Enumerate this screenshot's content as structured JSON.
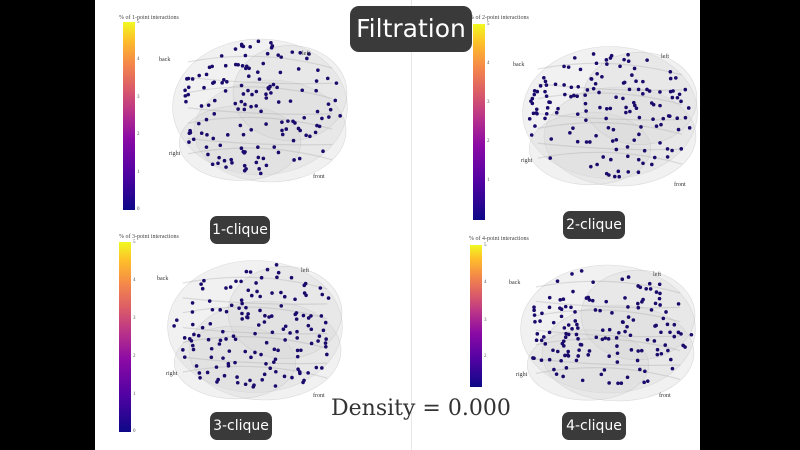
{
  "title": "Filtration",
  "density": "Density = 0.000",
  "colors": {
    "node": "#1a0a6b",
    "brain": "#d6d6d6"
  },
  "panels": [
    {
      "label": "1-clique",
      "colorbar_title": "% of 1-point interactions",
      "ticks": [
        "5",
        "4",
        "3",
        "2",
        "1",
        "0"
      ],
      "dirs": {
        "back": "back",
        "left": "left",
        "right": "right",
        "front": "front"
      }
    },
    {
      "label": "2-clique",
      "colorbar_title": "% of 2-point interactions",
      "ticks": [
        "5",
        "4",
        "3",
        "2",
        "1"
      ],
      "dirs": {
        "back": "back",
        "left": "left",
        "right": "right",
        "front": "front"
      }
    },
    {
      "label": "3-clique",
      "colorbar_title": "% of 3-point interactions",
      "ticks": [
        "5",
        "4",
        "3",
        "2",
        "1",
        "0"
      ],
      "dirs": {
        "back": "back",
        "left": "left",
        "right": "right",
        "front": "front"
      }
    },
    {
      "label": "4-clique",
      "colorbar_title": "% of 4-point interactions",
      "ticks": [
        "5",
        "4",
        "3",
        "2"
      ],
      "dirs": {
        "back": "back",
        "left": "left",
        "right": "right",
        "front": "front"
      }
    }
  ]
}
